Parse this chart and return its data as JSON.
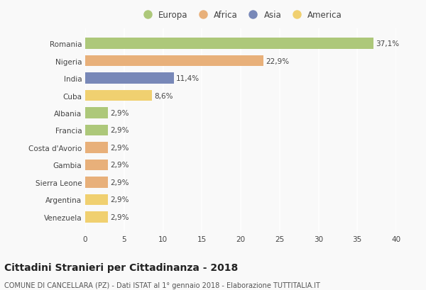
{
  "countries": [
    "Romania",
    "Nigeria",
    "India",
    "Cuba",
    "Albania",
    "Francia",
    "Costa d'Avorio",
    "Gambia",
    "Sierra Leone",
    "Argentina",
    "Venezuela"
  ],
  "values": [
    37.1,
    22.9,
    11.4,
    8.6,
    2.9,
    2.9,
    2.9,
    2.9,
    2.9,
    2.9,
    2.9
  ],
  "labels": [
    "37,1%",
    "22,9%",
    "11,4%",
    "8,6%",
    "2,9%",
    "2,9%",
    "2,9%",
    "2,9%",
    "2,9%",
    "2,9%",
    "2,9%"
  ],
  "continents": [
    "Europa",
    "Africa",
    "Asia",
    "America",
    "Europa",
    "Europa",
    "Africa",
    "Africa",
    "Africa",
    "America",
    "America"
  ],
  "continent_colors": {
    "Europa": "#adc87a",
    "Africa": "#e8b07a",
    "Asia": "#7888b8",
    "America": "#f0d070"
  },
  "legend_order": [
    "Europa",
    "Africa",
    "Asia",
    "America"
  ],
  "xlim": [
    0,
    40
  ],
  "xticks": [
    0,
    5,
    10,
    15,
    20,
    25,
    30,
    35,
    40
  ],
  "title": "Cittadini Stranieri per Cittadinanza - 2018",
  "subtitle": "COMUNE DI CANCELLARA (PZ) - Dati ISTAT al 1° gennaio 2018 - Elaborazione TUTTITALIA.IT",
  "background_color": "#f9f9f9",
  "grid_color": "#ffffff",
  "bar_height": 0.65,
  "label_fontsize": 7.5,
  "title_fontsize": 10,
  "subtitle_fontsize": 7.0,
  "ytick_fontsize": 7.5,
  "xtick_fontsize": 7.5,
  "legend_fontsize": 8.5
}
